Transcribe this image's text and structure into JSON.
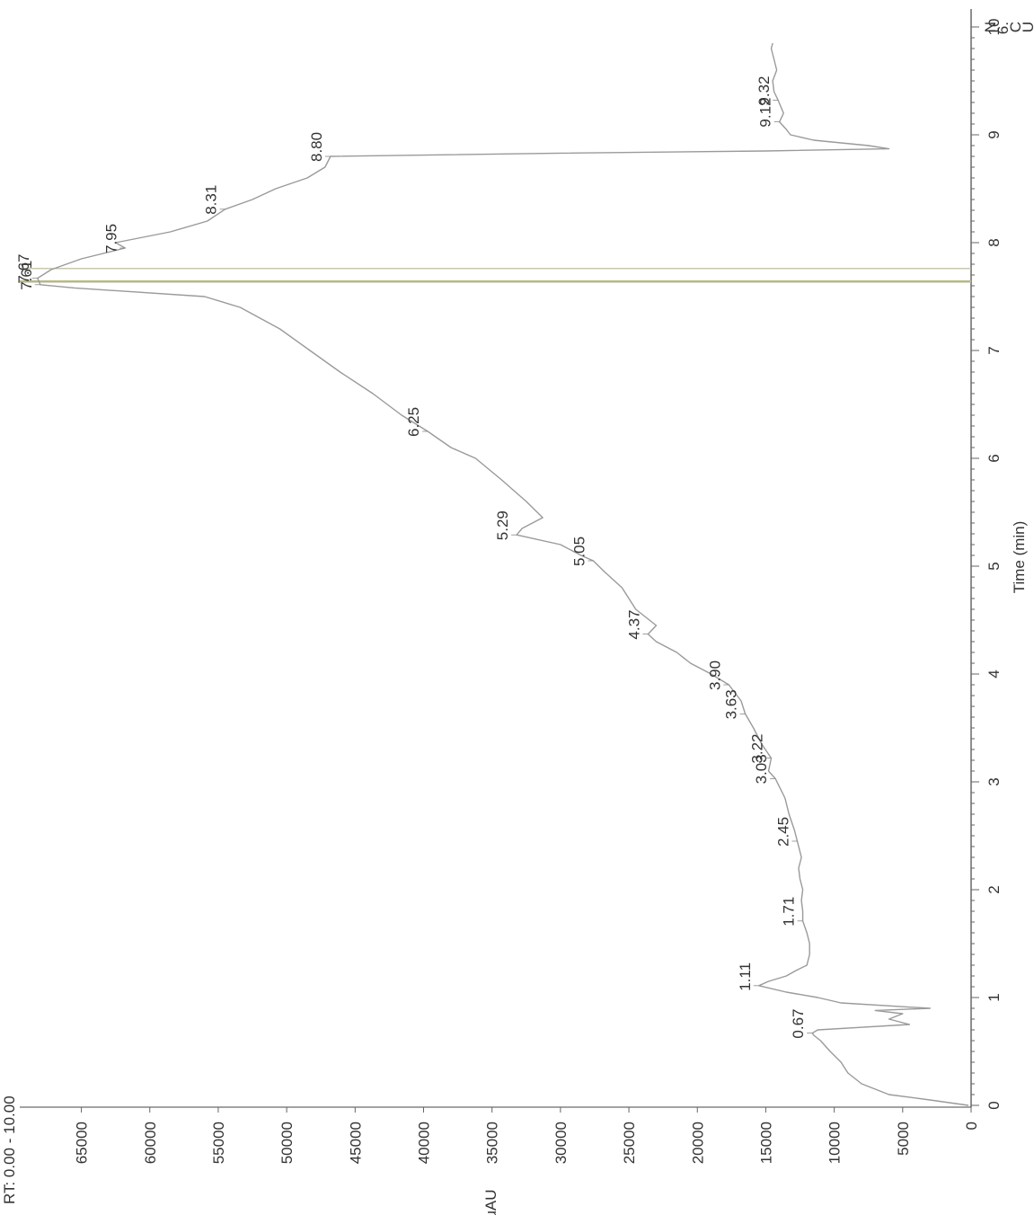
{
  "header": {
    "rt_label": "RT: 0.00 - 10.00",
    "corner_lines": [
      "N",
      "6.",
      "C",
      "U"
    ]
  },
  "chart_data": {
    "type": "line",
    "title": "",
    "xlabel": "Time (min)",
    "ylabel": "uAU",
    "xlim": [
      0,
      10
    ],
    "ylim": [
      0,
      69500
    ],
    "x_ticks": [
      0,
      1,
      2,
      3,
      4,
      5,
      6,
      7,
      8,
      9,
      10
    ],
    "y_ticks": [
      0,
      5000,
      10000,
      15000,
      20000,
      25000,
      30000,
      35000,
      40000,
      45000,
      50000,
      55000,
      60000,
      65000
    ],
    "grid": false,
    "orientation": "rotated-90-ccw",
    "colors": {
      "trace": "#9a9a9a",
      "marker_line": "#b8b78a",
      "axis": "#444444"
    },
    "marker_lines_x": [
      7.64,
      7.76
    ],
    "series": [
      {
        "name": "",
        "x": [
          0.0,
          0.05,
          0.1,
          0.2,
          0.3,
          0.4,
          0.5,
          0.6,
          0.65,
          0.67,
          0.7,
          0.75,
          0.8,
          0.85,
          0.88,
          0.9,
          0.95,
          1.0,
          1.05,
          1.11,
          1.15,
          1.2,
          1.25,
          1.3,
          1.4,
          1.5,
          1.6,
          1.71,
          1.8,
          1.9,
          2.0,
          2.1,
          2.2,
          2.3,
          2.45,
          2.55,
          2.7,
          2.85,
          3.03,
          3.1,
          3.22,
          3.35,
          3.5,
          3.63,
          3.75,
          3.9,
          4.0,
          4.1,
          4.2,
          4.3,
          4.37,
          4.45,
          4.6,
          4.8,
          4.95,
          5.05,
          5.1,
          5.2,
          5.29,
          5.35,
          5.45,
          5.6,
          5.8,
          6.0,
          6.1,
          6.25,
          6.4,
          6.6,
          6.8,
          7.0,
          7.2,
          7.4,
          7.5,
          7.58,
          7.61,
          7.67,
          7.75,
          7.85,
          7.95,
          8.0,
          8.1,
          8.2,
          8.31,
          8.4,
          8.5,
          8.6,
          8.7,
          8.8,
          8.83,
          8.85,
          8.87,
          8.9,
          8.95,
          9.0,
          9.05,
          9.12,
          9.2,
          9.32,
          9.4,
          9.5,
          9.6,
          9.7,
          9.8,
          9.85
        ],
        "y": [
          200,
          3000,
          6000,
          8000,
          9000,
          9500,
          10300,
          11000,
          11500,
          11600,
          11200,
          4500,
          6000,
          5000,
          7000,
          3000,
          9500,
          11200,
          13500,
          15500,
          14800,
          13500,
          12800,
          12000,
          11800,
          11800,
          12000,
          12300,
          12300,
          12400,
          12300,
          12500,
          12600,
          12400,
          12700,
          12900,
          13300,
          13600,
          14300,
          14800,
          14600,
          15300,
          15900,
          16500,
          16800,
          17700,
          19000,
          20500,
          21500,
          23000,
          23600,
          23000,
          24500,
          25500,
          26800,
          27600,
          28500,
          30000,
          33200,
          32800,
          31300,
          32500,
          34300,
          36200,
          38000,
          39700,
          41600,
          43700,
          46100,
          48300,
          50500,
          53400,
          56000,
          65500,
          68000,
          68200,
          67200,
          65000,
          61800,
          62500,
          58500,
          55800,
          54500,
          52500,
          50800,
          48500,
          47200,
          46800,
          30000,
          15000,
          6000,
          7500,
          11500,
          13200,
          13500,
          14000,
          13700,
          14100,
          14400,
          14500,
          14200,
          14400,
          14600,
          14500
        ]
      }
    ],
    "peak_labels": [
      {
        "text": "0.67",
        "x": 0.67,
        "y": 11600
      },
      {
        "text": "1.11",
        "x": 1.11,
        "y": 15500
      },
      {
        "text": "1.71",
        "x": 1.71,
        "y": 12300
      },
      {
        "text": "2.45",
        "x": 2.45,
        "y": 12700
      },
      {
        "text": "3.03",
        "x": 3.03,
        "y": 14300
      },
      {
        "text": "3.22",
        "x": 3.22,
        "y": 14600
      },
      {
        "text": "3.63",
        "x": 3.63,
        "y": 16500
      },
      {
        "text": "3.90",
        "x": 3.9,
        "y": 17700
      },
      {
        "text": "4.37",
        "x": 4.37,
        "y": 23600
      },
      {
        "text": "5.05",
        "x": 5.05,
        "y": 27600
      },
      {
        "text": "5.29",
        "x": 5.29,
        "y": 33200
      },
      {
        "text": "6.25",
        "x": 6.25,
        "y": 39700
      },
      {
        "text": "7.61",
        "x": 7.61,
        "y": 68000
      },
      {
        "text": "7.67",
        "x": 7.67,
        "y": 68200
      },
      {
        "text": "7.95",
        "x": 7.95,
        "y": 61800
      },
      {
        "text": "8.31",
        "x": 8.31,
        "y": 54500
      },
      {
        "text": "8.80",
        "x": 8.8,
        "y": 46800
      },
      {
        "text": "9.12",
        "x": 9.12,
        "y": 14000
      },
      {
        "text": "9.32",
        "x": 9.32,
        "y": 14100
      }
    ]
  }
}
